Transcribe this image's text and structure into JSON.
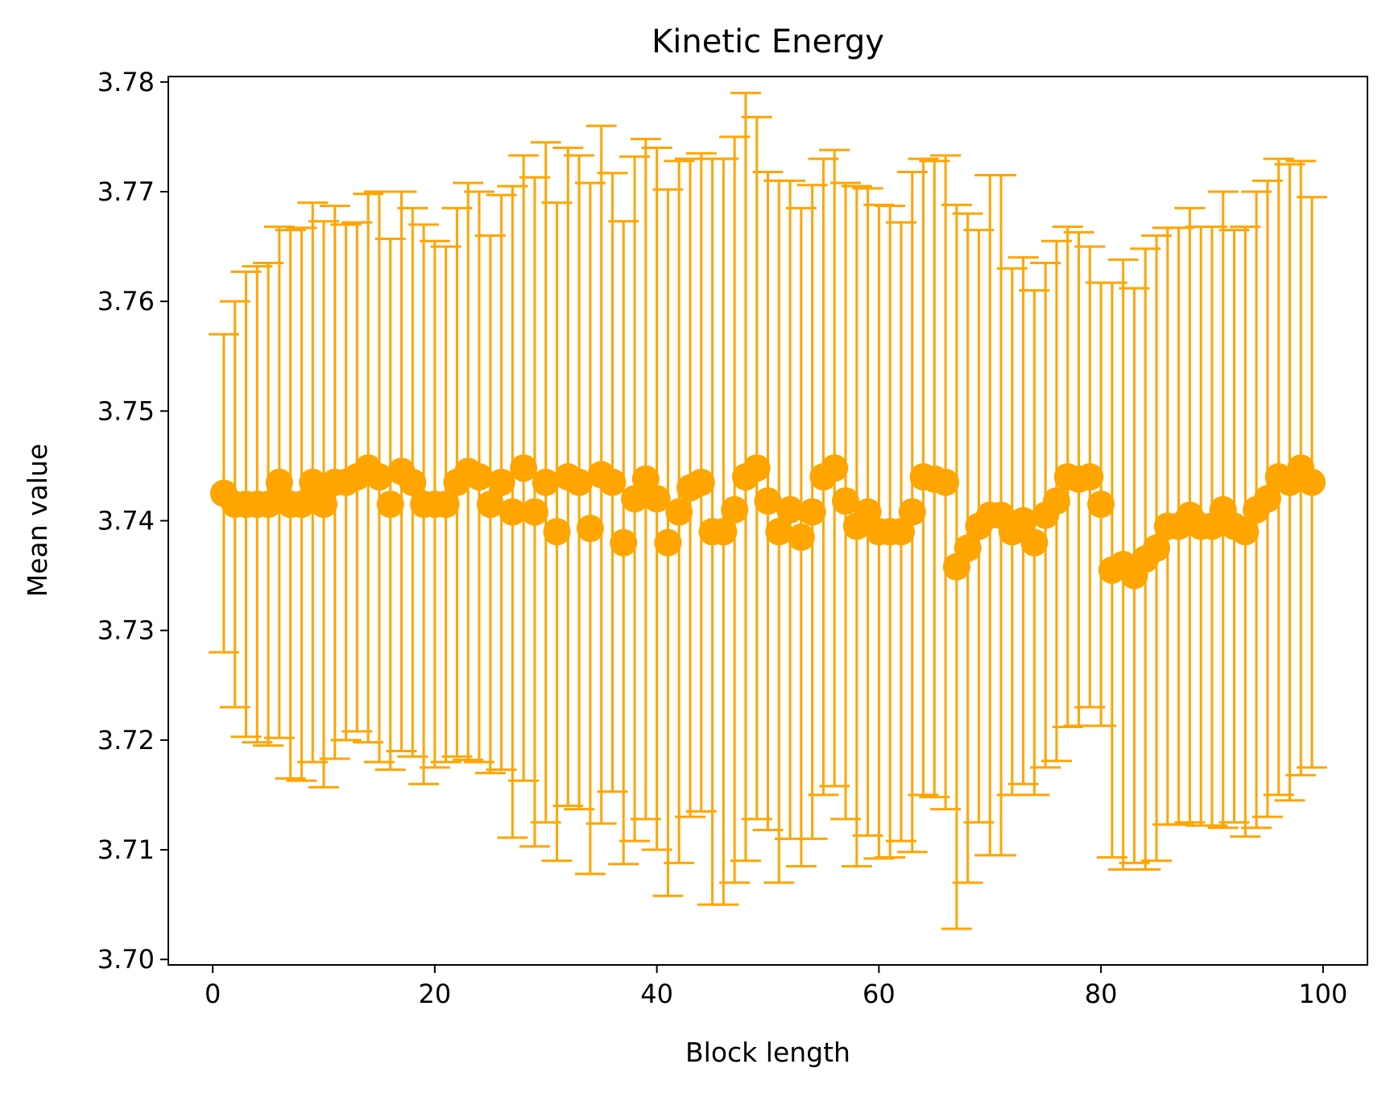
{
  "chart_data": {
    "type": "scatter",
    "title": "Kinetic Energy",
    "xlabel": "Block length",
    "ylabel": "Mean value",
    "xlim": [
      -4,
      104
    ],
    "ylim": [
      3.6995,
      3.7805
    ],
    "xticks": [
      0,
      20,
      40,
      60,
      80,
      100
    ],
    "yticks": [
      3.7,
      3.71,
      3.72,
      3.73,
      3.74,
      3.75,
      3.76,
      3.77,
      3.78
    ],
    "xtick_labels": [
      "0",
      "20",
      "40",
      "60",
      "80",
      "100"
    ],
    "ytick_labels": [
      "3.70",
      "3.71",
      "3.72",
      "3.73",
      "3.74",
      "3.75",
      "3.76",
      "3.77",
      "3.78"
    ],
    "grid": false,
    "color": "#FFA500",
    "series": [
      {
        "x": [
          1,
          2,
          3,
          4,
          5,
          6,
          7,
          8,
          9,
          10,
          11,
          12,
          13,
          14,
          15,
          16,
          17,
          18,
          19,
          20,
          21,
          22,
          23,
          24,
          25,
          26,
          27,
          28,
          29,
          30,
          31,
          32,
          33,
          34,
          35,
          36,
          37,
          38,
          39,
          40,
          41,
          42,
          43,
          44,
          45,
          46,
          47,
          48,
          49,
          50,
          51,
          52,
          53,
          54,
          55,
          56,
          57,
          58,
          59,
          60,
          61,
          62,
          63,
          64,
          65,
          66,
          67,
          68,
          69,
          70,
          71,
          72,
          73,
          74,
          75,
          76,
          77,
          78,
          79,
          80,
          81,
          82,
          83,
          84,
          85,
          86,
          87,
          88,
          89,
          90,
          91,
          92,
          93,
          94,
          95,
          96,
          97,
          98,
          99
        ],
        "y": [
          3.7425,
          3.7415,
          3.7415,
          3.7415,
          3.7415,
          3.7435,
          3.7415,
          3.7415,
          3.7435,
          3.7415,
          3.7435,
          3.7435,
          3.744,
          3.7448,
          3.744,
          3.7415,
          3.7445,
          3.7435,
          3.7415,
          3.7415,
          3.7415,
          3.7435,
          3.7445,
          3.744,
          3.7415,
          3.7435,
          3.7408,
          3.7448,
          3.7408,
          3.7435,
          3.739,
          3.744,
          3.7435,
          3.7393,
          3.7442,
          3.7435,
          3.738,
          3.742,
          3.7438,
          3.742,
          3.738,
          3.7408,
          3.743,
          3.7435,
          3.739,
          3.739,
          3.741,
          3.744,
          3.7448,
          3.7418,
          3.739,
          3.741,
          3.7385,
          3.7408,
          3.744,
          3.7448,
          3.7418,
          3.7395,
          3.7408,
          3.739,
          3.739,
          3.739,
          3.7408,
          3.744,
          3.7438,
          3.7435,
          3.7358,
          3.7375,
          3.7395,
          3.7405,
          3.7405,
          3.739,
          3.74,
          3.738,
          3.7405,
          3.7418,
          3.744,
          3.7438,
          3.744,
          3.7415,
          3.7355,
          3.736,
          3.735,
          3.7365,
          3.7375,
          3.7395,
          3.7395,
          3.7405,
          3.7395,
          3.7395,
          3.741,
          3.7395,
          3.739,
          3.741,
          3.742,
          3.744,
          3.7435,
          3.7448,
          3.7435
        ],
        "yerr": [
          0.0145,
          0.0185,
          0.0212,
          0.0217,
          0.022,
          0.0233,
          0.025,
          0.0252,
          0.0255,
          0.0258,
          0.0252,
          0.0235,
          0.0232,
          0.025,
          0.026,
          0.0242,
          0.0255,
          0.025,
          0.0255,
          0.024,
          0.0235,
          0.025,
          0.0263,
          0.026,
          0.0245,
          0.0262,
          0.0297,
          0.0285,
          0.0305,
          0.031,
          0.03,
          0.03,
          0.0298,
          0.0315,
          0.0318,
          0.0282,
          0.0293,
          0.0312,
          0.031,
          0.032,
          0.0322,
          0.032,
          0.03,
          0.03,
          0.034,
          0.034,
          0.034,
          0.035,
          0.032,
          0.03,
          0.032,
          0.03,
          0.03,
          0.0298,
          0.029,
          0.029,
          0.029,
          0.031,
          0.0295,
          0.0298,
          0.0297,
          0.0282,
          0.031,
          0.029,
          0.029,
          0.0298,
          0.033,
          0.0305,
          0.027,
          0.031,
          0.031,
          0.024,
          0.024,
          0.023,
          0.023,
          0.0237,
          0.0228,
          0.0225,
          0.021,
          0.0202,
          0.0262,
          0.0278,
          0.0262,
          0.0283,
          0.0285,
          0.0272,
          0.0272,
          0.028,
          0.0273,
          0.0273,
          0.029,
          0.027,
          0.0278,
          0.029,
          0.029,
          0.029,
          0.029,
          0.028,
          0.026
        ]
      }
    ]
  }
}
